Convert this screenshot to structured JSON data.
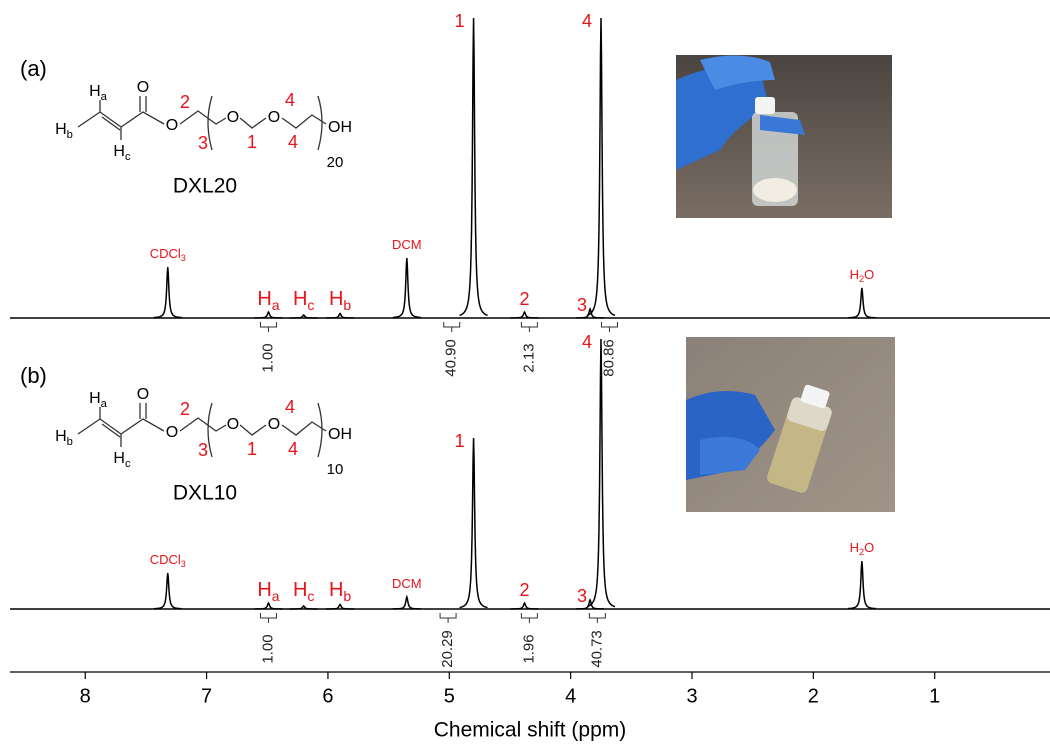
{
  "chart_data": {
    "type": "nmr",
    "x_label": "Chemical shift (ppm)",
    "xlim": [
      8.62,
      0.05
    ],
    "xticks": [
      8,
      7,
      6,
      5,
      4,
      3,
      2,
      1
    ],
    "peak_ppm": [
      7.32,
      6.49,
      6.2,
      5.9,
      5.35,
      4.8,
      4.38,
      3.84,
      3.75,
      1.6
    ],
    "peak_labels": [
      {
        "main": "CDCl",
        "sub": "3"
      },
      {
        "main": "H",
        "sub": "a"
      },
      {
        "main": "H",
        "sub": "c"
      },
      {
        "main": "H",
        "sub": "b"
      },
      {
        "main": "DCM"
      },
      {
        "main": "1"
      },
      {
        "main": "2"
      },
      {
        "main": "3"
      },
      {
        "main": "4"
      },
      {
        "main": "H",
        "sub": "2",
        "tail": "O"
      }
    ],
    "structure": {
      "h_a": {
        "main": "H",
        "sub": "a"
      },
      "h_b": {
        "main": "H",
        "sub": "b"
      },
      "h_c": {
        "main": "H",
        "sub": "c"
      },
      "o": "O",
      "oh": "OH",
      "positions": [
        "2",
        "3",
        "1",
        "4",
        "4"
      ]
    },
    "series": [
      {
        "name": "DXL20",
        "tag": "(a)",
        "repeat": "20",
        "color": "#000000",
        "values": [
          17,
          2,
          1,
          1.5,
          20,
          100,
          2,
          3,
          100,
          10
        ],
        "integrals": {
          "x": [
            6.49,
            4.98,
            4.34,
            3.68
          ],
          "values": [
            1,
            40.9,
            2.13,
            80.86
          ],
          "value_labels": [
            "1.00",
            "40.90",
            "2.13",
            "80.86"
          ]
        }
      },
      {
        "name": "DXL10",
        "tag": "(b)",
        "repeat": "10",
        "color": "#000000",
        "values": [
          12,
          2,
          1,
          1.5,
          4,
          57,
          2,
          3,
          90,
          16
        ],
        "integrals": {
          "x": [
            6.49,
            5.01,
            4.34,
            3.78
          ],
          "values": [
            1,
            20.29,
            1.96,
            40.73
          ],
          "value_labels": [
            "1.00",
            "20.29",
            "1.96",
            "40.73"
          ]
        }
      }
    ]
  }
}
